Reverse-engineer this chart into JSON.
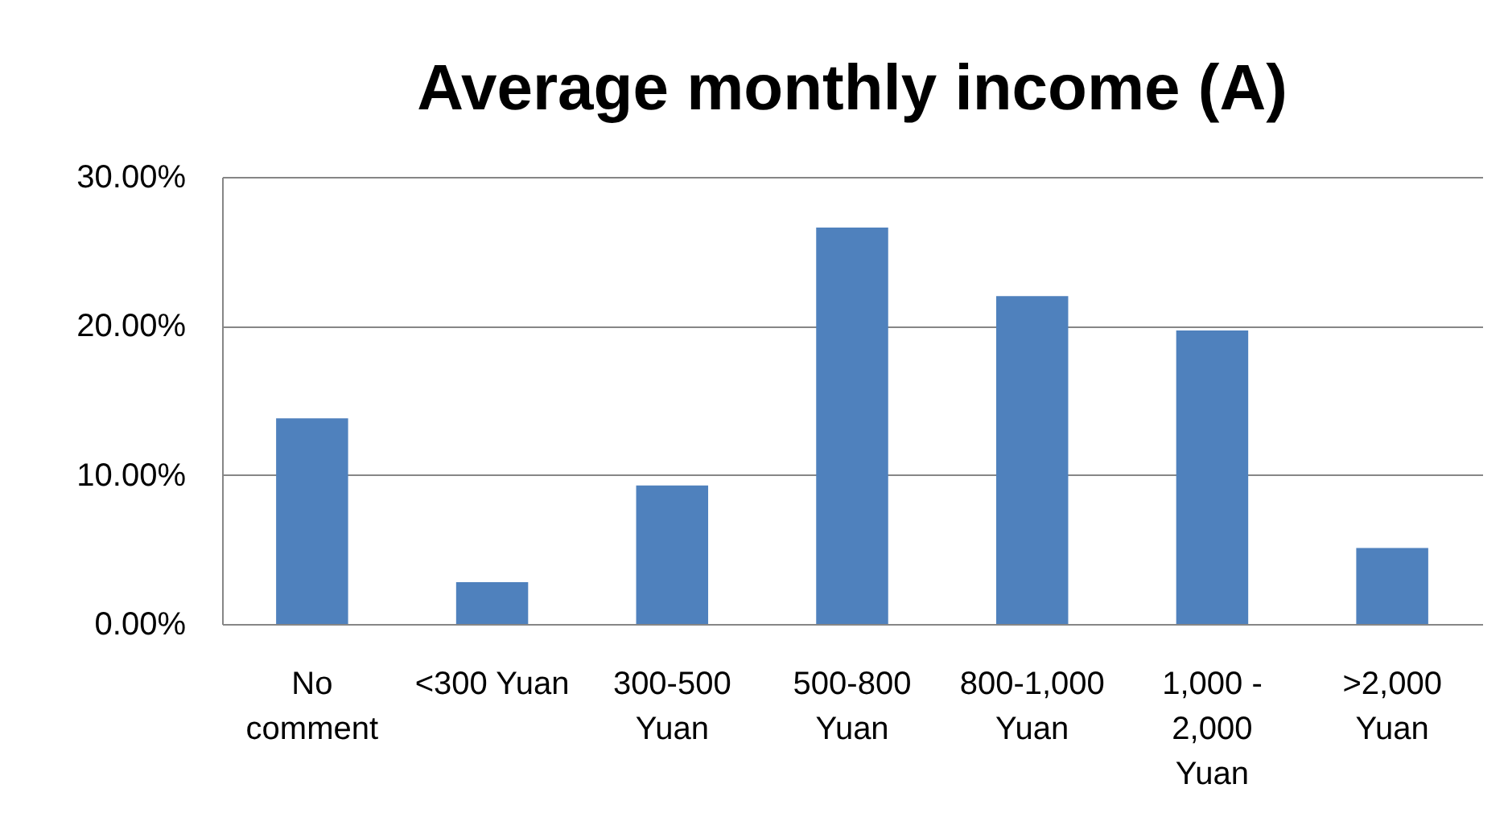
{
  "chart_data": {
    "type": "bar",
    "title": "Average monthly income (A)",
    "categories": [
      "No comment",
      "<300 Yuan",
      "300-500 Yuan",
      "500-800 Yuan",
      "800-1,000 Yuan",
      "1,000 - 2,000 Yuan",
      ">2,000 Yuan"
    ],
    "values": [
      13.8,
      2.8,
      9.3,
      26.6,
      22.0,
      19.7,
      5.1
    ],
    "color": "#4f81bd",
    "ylim": [
      0,
      30
    ],
    "yticks": [
      {
        "value": 0,
        "label": "0.00%"
      },
      {
        "value": 10,
        "label": "10.00%"
      },
      {
        "value": 20,
        "label": "20.00%"
      },
      {
        "value": 30,
        "label": "30.00%"
      }
    ],
    "grid": "y"
  }
}
